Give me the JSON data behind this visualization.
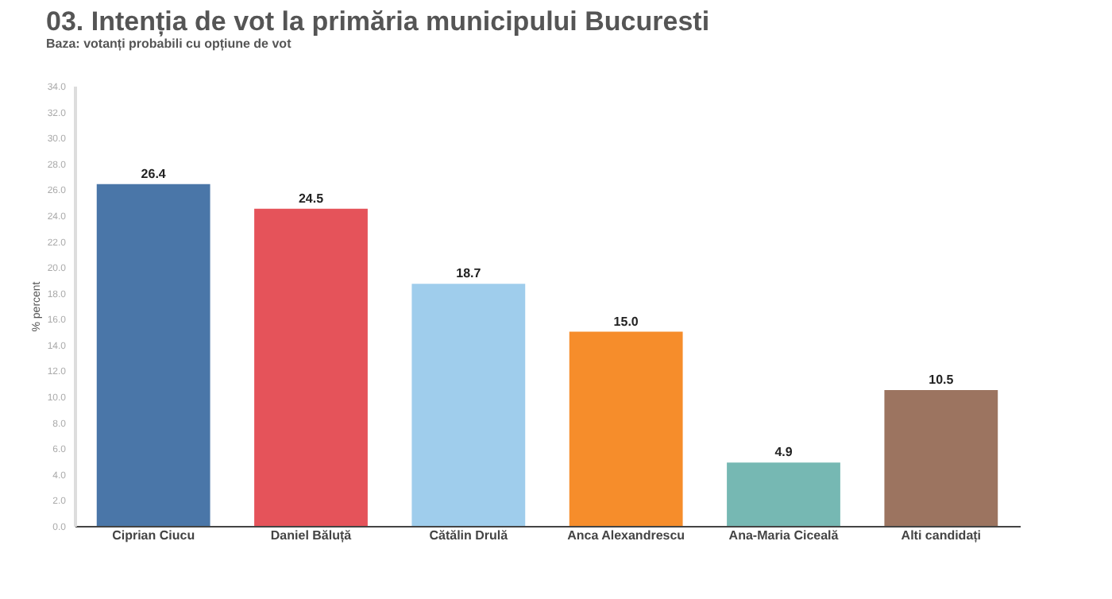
{
  "chart_data": {
    "type": "bar",
    "title": "03. Intenția de vot la primăria municipului Bucuresti",
    "subtitle": "Baza: votanți probabili cu opțiune de vot",
    "ylabel": "% percent",
    "categories": [
      "Ciprian Ciucu",
      "Daniel Băluță",
      "Cătălin Drulă",
      "Anca Alexandrescu",
      "Ana-Maria Ciceală",
      "Alti candidați"
    ],
    "values": [
      26.4,
      24.5,
      18.7,
      15.0,
      4.9,
      10.5
    ],
    "colors": [
      "#4a76a8",
      "#e5535a",
      "#9fcdec",
      "#f68d2b",
      "#76b8b3",
      "#9c7460"
    ],
    "value_labels": [
      "26.4",
      "24.5",
      "18.7",
      "15.0",
      "4.9",
      "10.5"
    ],
    "ylim": [
      0,
      34
    ],
    "yticks": [
      {
        "value": 0,
        "label": "0.0"
      },
      {
        "value": 2,
        "label": "2.0"
      },
      {
        "value": 4,
        "label": "4.0"
      },
      {
        "value": 6,
        "label": "6.0"
      },
      {
        "value": 8,
        "label": "8.0"
      },
      {
        "value": 10,
        "label": "10.0"
      },
      {
        "value": 12,
        "label": "12.0"
      },
      {
        "value": 14,
        "label": "14.0"
      },
      {
        "value": 16,
        "label": "16.0"
      },
      {
        "value": 18,
        "label": "18.0"
      },
      {
        "value": 20,
        "label": "20.0"
      },
      {
        "value": 22,
        "label": "22.0"
      },
      {
        "value": 24,
        "label": "24.0"
      },
      {
        "value": 26,
        "label": "26.0"
      },
      {
        "value": 28,
        "label": "28.0"
      },
      {
        "value": 30,
        "label": "30.0"
      },
      {
        "value": 32,
        "label": "32.0"
      },
      {
        "value": 34,
        "label": "34.0"
      }
    ],
    "grid": false
  }
}
